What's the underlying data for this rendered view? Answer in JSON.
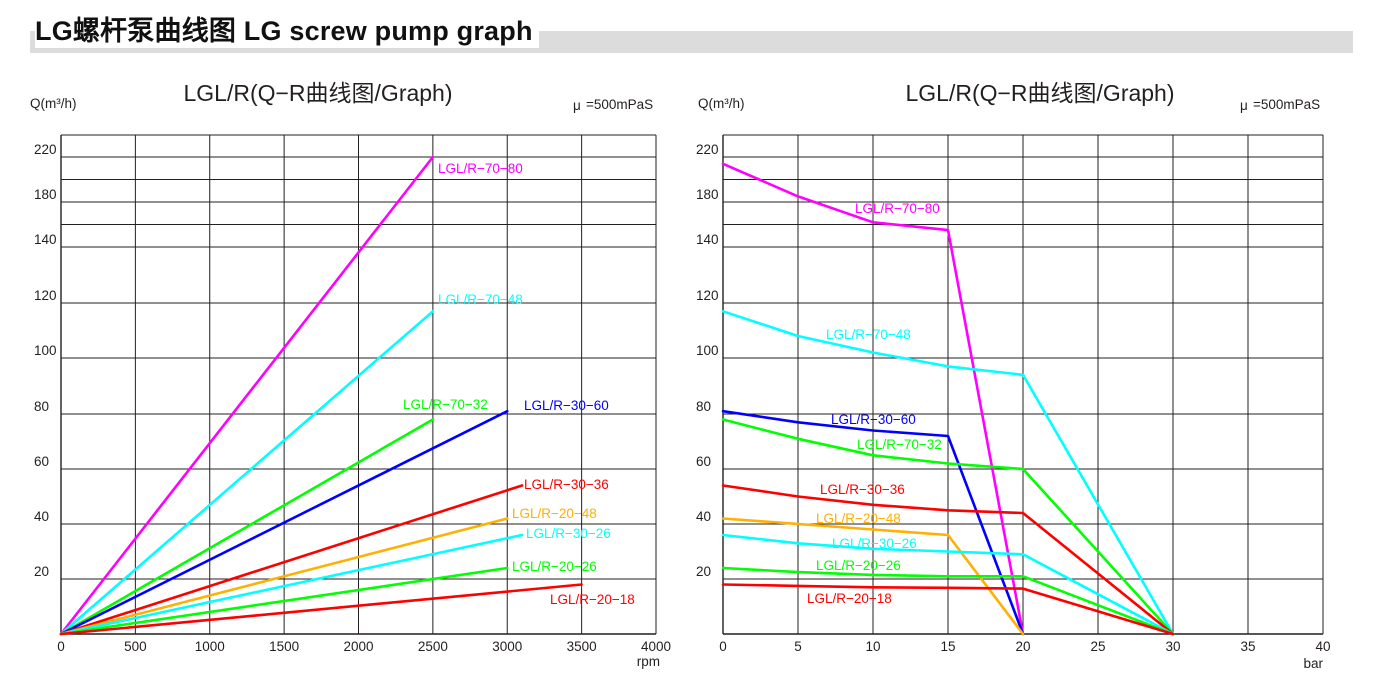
{
  "page": {
    "title": "LG螺杆泵曲线图 LG screw pump graph"
  },
  "chart_data": [
    {
      "type": "line",
      "title": "LGL/R(Q−R曲线图/Graph)",
      "ylabel": "Q(m³/h)",
      "xlabel": "rpm",
      "viscosity_label": "μ",
      "viscosity_value": "=500mPaS",
      "xlim": [
        0,
        4000
      ],
      "x_ticks": [
        0,
        500,
        1000,
        1500,
        2000,
        2500,
        3000,
        3500,
        4000
      ],
      "y_ticks": [
        {
          "label": "20",
          "value": 20
        },
        {
          "label": "40",
          "value": 40
        },
        {
          "label": "60",
          "value": 60
        },
        {
          "label": "80",
          "value": 80
        },
        {
          "label": "100",
          "value": 100
        },
        {
          "label": "120",
          "value": 120
        },
        {
          "label": "140",
          "value": 140
        },
        {
          "label": "180",
          "value": 180
        },
        {
          "label": "220",
          "value": 220
        }
      ],
      "grid": true,
      "series": [
        {
          "name": "LGL/R−70−80",
          "color": "#ff00ff",
          "points": [
            [
              0,
              0
            ],
            [
              2500,
              220
            ]
          ]
        },
        {
          "name": "LGL/R−70−48",
          "color": "#00ffff",
          "points": [
            [
              0,
              0
            ],
            [
              2500,
              117
            ]
          ]
        },
        {
          "name": "LGL/R−70−32",
          "color": "#00ff00",
          "points": [
            [
              0,
              0
            ],
            [
              2500,
              78
            ]
          ]
        },
        {
          "name": "LGL/R−30−60",
          "color": "#0000ff",
          "points": [
            [
              0,
              0
            ],
            [
              3000,
              81
            ]
          ]
        },
        {
          "name": "LGL/R−30−36",
          "color": "#ff0000",
          "points": [
            [
              0,
              0
            ],
            [
              3100,
              54
            ]
          ]
        },
        {
          "name": "LGL/R−20−48",
          "color": "#ffb000",
          "points": [
            [
              0,
              0
            ],
            [
              3000,
              42
            ]
          ]
        },
        {
          "name": "LGL/R−30−26",
          "color": "#00ffff",
          "points": [
            [
              0,
              0
            ],
            [
              3100,
              36
            ]
          ]
        },
        {
          "name": "LGL/R−20−26",
          "color": "#00ff00",
          "points": [
            [
              0,
              0
            ],
            [
              3000,
              24
            ]
          ]
        },
        {
          "name": "LGL/R−20−18",
          "color": "#ff0000",
          "points": [
            [
              0,
              0
            ],
            [
              3500,
              18
            ]
          ]
        }
      ]
    },
    {
      "type": "line",
      "title": "LGL/R(Q−R曲线图/Graph)",
      "ylabel": "Q(m³/h)",
      "xlabel": "bar",
      "viscosity_label": "μ",
      "viscosity_value": "=500mPaS",
      "xlim": [
        0,
        40
      ],
      "x_ticks": [
        0,
        5,
        10,
        15,
        20,
        25,
        30,
        35,
        40
      ],
      "y_ticks": [
        {
          "label": "20",
          "value": 20
        },
        {
          "label": "40",
          "value": 40
        },
        {
          "label": "60",
          "value": 60
        },
        {
          "label": "80",
          "value": 80
        },
        {
          "label": "100",
          "value": 100
        },
        {
          "label": "120",
          "value": 120
        },
        {
          "label": "140",
          "value": 140
        },
        {
          "label": "180",
          "value": 180
        },
        {
          "label": "220",
          "value": 220
        }
      ],
      "grid": true,
      "series": [
        {
          "name": "LGL/R−70−80",
          "color": "#ff00ff",
          "points": [
            [
              0,
              214
            ],
            [
              5,
              185
            ],
            [
              10,
              162
            ],
            [
              15,
              155
            ],
            [
              20,
              0
            ]
          ]
        },
        {
          "name": "LGL/R−70−48",
          "color": "#00ffff",
          "points": [
            [
              0,
              117
            ],
            [
              5,
              108
            ],
            [
              10,
              102
            ],
            [
              15,
              97
            ],
            [
              20,
              94
            ],
            [
              30,
              0
            ]
          ]
        },
        {
          "name": "LGL/R−30−60",
          "color": "#0000ff",
          "points": [
            [
              0,
              81
            ],
            [
              5,
              77
            ],
            [
              10,
              74
            ],
            [
              15,
              72
            ],
            [
              20,
              0
            ]
          ]
        },
        {
          "name": "LGL/R−70−32",
          "color": "#00ff00",
          "points": [
            [
              0,
              78
            ],
            [
              5,
              71
            ],
            [
              10,
              65
            ],
            [
              15,
              62
            ],
            [
              20,
              60
            ],
            [
              30,
              0
            ]
          ]
        },
        {
          "name": "LGL/R−30−36",
          "color": "#ff0000",
          "points": [
            [
              0,
              54
            ],
            [
              5,
              50
            ],
            [
              10,
              47
            ],
            [
              15,
              45
            ],
            [
              20,
              44
            ],
            [
              30,
              0
            ]
          ]
        },
        {
          "name": "LGL/R−20−48",
          "color": "#ffb000",
          "points": [
            [
              0,
              42
            ],
            [
              5,
              40
            ],
            [
              10,
              38
            ],
            [
              15,
              36
            ],
            [
              20,
              0
            ]
          ]
        },
        {
          "name": "LGL/R−30−26",
          "color": "#00ffff",
          "points": [
            [
              0,
              36
            ],
            [
              5,
              33
            ],
            [
              10,
              31
            ],
            [
              15,
              30
            ],
            [
              20,
              29
            ],
            [
              30,
              0
            ]
          ]
        },
        {
          "name": "LGL/R−20−26",
          "color": "#00ff00",
          "points": [
            [
              0,
              24
            ],
            [
              5,
              22.5
            ],
            [
              10,
              21.5
            ],
            [
              15,
              21
            ],
            [
              20,
              21
            ],
            [
              30,
              0
            ]
          ]
        },
        {
          "name": "LGL/R−20−18",
          "color": "#ff0000",
          "points": [
            [
              0,
              18
            ],
            [
              5,
              17.5
            ],
            [
              10,
              17
            ],
            [
              15,
              16.8
            ],
            [
              20,
              16.5
            ],
            [
              30,
              0
            ]
          ]
        }
      ]
    }
  ]
}
